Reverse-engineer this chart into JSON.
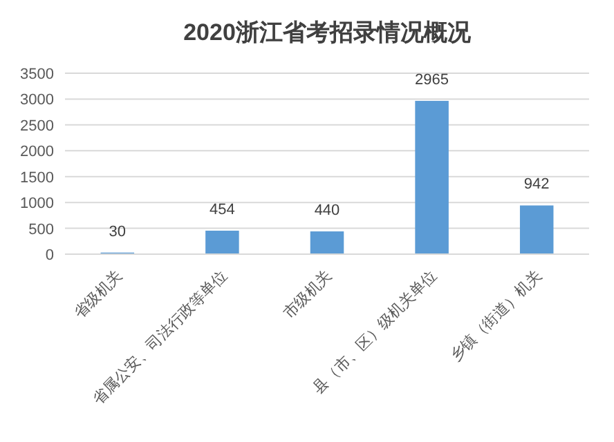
{
  "chart_data": {
    "type": "bar",
    "title": "2020浙江省考招录情况概况",
    "categories": [
      "省级机关",
      "省属公安、司法行政等单位",
      "市级机关",
      "县（市、区）级机关单位",
      "乡镇（街道）机关"
    ],
    "values": [
      30,
      454,
      440,
      2965,
      942
    ],
    "color": "#5b9bd5",
    "ylim": [
      0,
      3500
    ],
    "yticks": [
      0,
      500,
      1000,
      1500,
      2000,
      2500,
      3000,
      3500
    ],
    "grid": "y",
    "data_labels": true
  }
}
